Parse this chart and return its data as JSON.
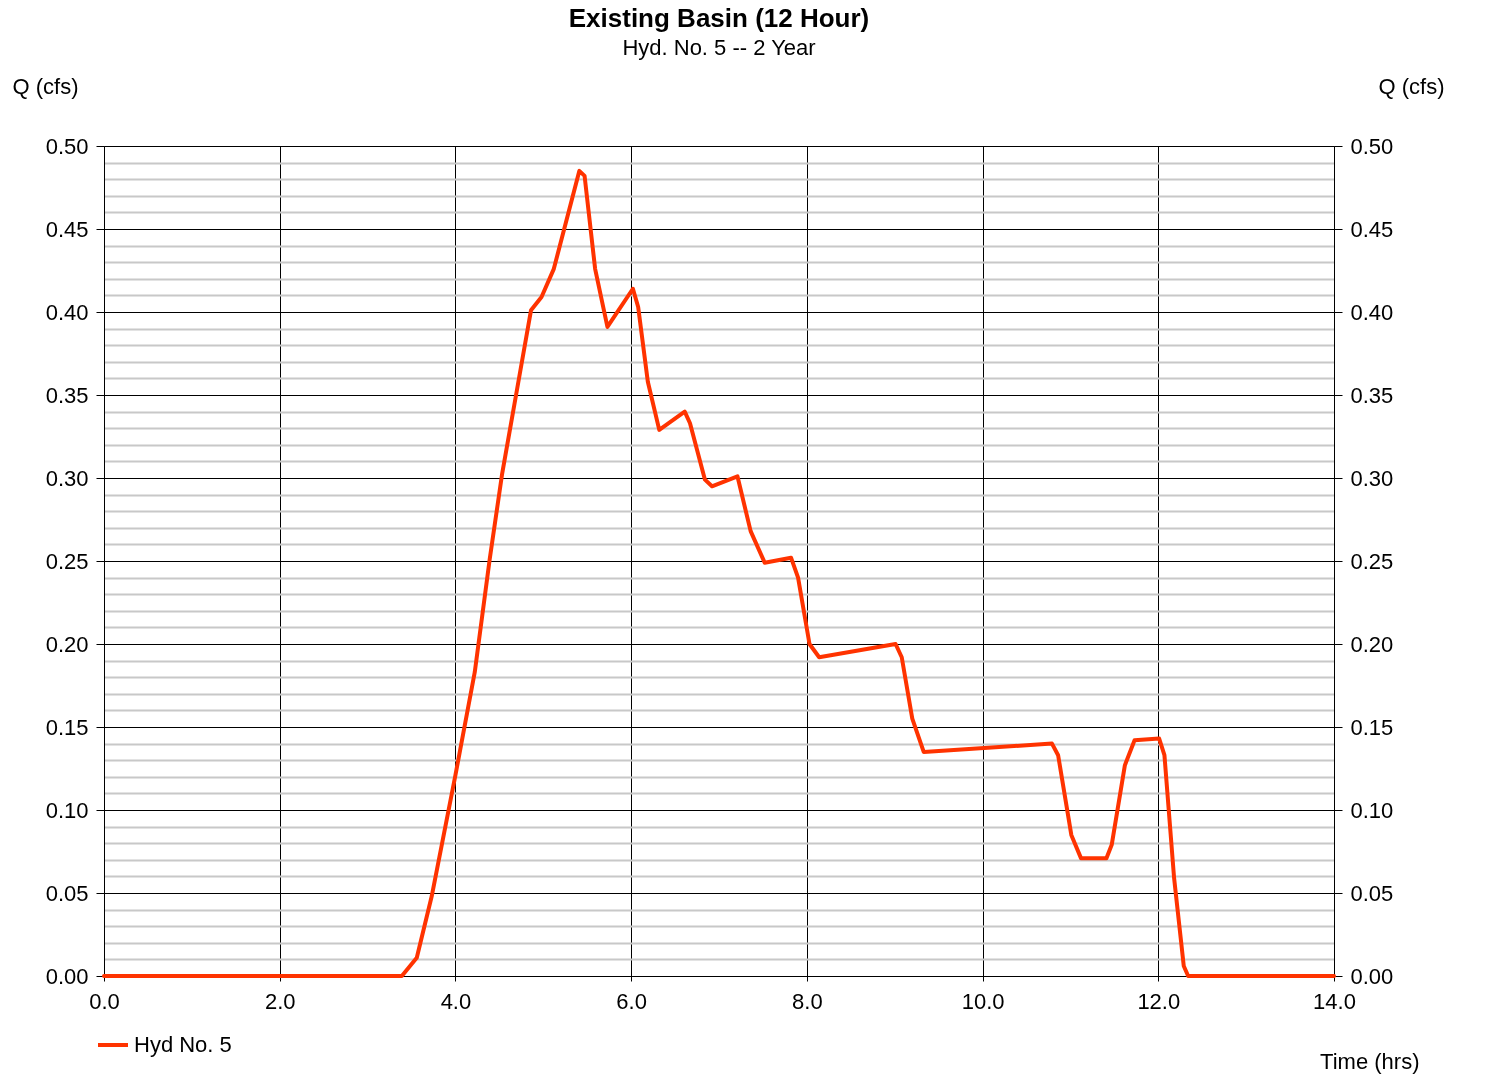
{
  "chart_data": {
    "type": "line",
    "title": "Existing Basin (12 Hour)",
    "subtitle": "Hyd. No. 5 -- 2 Year",
    "xlabel": "Time (hrs)",
    "ylabel": "Q (cfs)",
    "y2label": "Q (cfs)",
    "series": [
      {
        "name": "Hyd No. 5",
        "color": "#ff3300",
        "x": [
          0,
          3.39,
          3.56,
          3.73,
          4.0,
          4.22,
          4.39,
          4.53,
          4.69,
          4.86,
          4.98,
          5.12,
          5.41,
          5.47,
          5.59,
          5.73,
          6.02,
          6.08,
          6.19,
          6.32,
          6.61,
          6.67,
          6.84,
          6.92,
          7.21,
          7.36,
          7.52,
          7.82,
          7.9,
          8.03,
          8.14,
          9.01,
          9.08,
          9.2,
          9.33,
          10.79,
          10.86,
          11.01,
          11.12,
          11.41,
          11.47,
          11.62,
          11.73,
          12.01,
          12.07,
          12.18,
          12.29,
          12.34,
          14
        ],
        "values": [
          0,
          0,
          0.011,
          0.048,
          0.121,
          0.183,
          0.251,
          0.302,
          0.35,
          0.401,
          0.409,
          0.426,
          0.485,
          0.482,
          0.426,
          0.391,
          0.414,
          0.403,
          0.358,
          0.329,
          0.34,
          0.333,
          0.299,
          0.295,
          0.301,
          0.268,
          0.249,
          0.252,
          0.24,
          0.2,
          0.192,
          0.2,
          0.192,
          0.155,
          0.135,
          0.14,
          0.133,
          0.085,
          0.071,
          0.071,
          0.079,
          0.127,
          0.142,
          0.143,
          0.133,
          0.059,
          0.006,
          0,
          0
        ]
      }
    ],
    "xlim": [
      0,
      14
    ],
    "xticks": [
      {
        "value": 0,
        "label": "0.0"
      },
      {
        "value": 2,
        "label": "2.0"
      },
      {
        "value": 4,
        "label": "4.0"
      },
      {
        "value": 6,
        "label": "6.0"
      },
      {
        "value": 8,
        "label": "8.0"
      },
      {
        "value": 10,
        "label": "10.0"
      },
      {
        "value": 12,
        "label": "12.0"
      },
      {
        "value": 14,
        "label": "14.0"
      }
    ],
    "ylim": [
      0,
      0.5
    ],
    "yticks": [
      {
        "value": 0,
        "label": "0.00"
      },
      {
        "value": 0.01,
        "label": null
      },
      {
        "value": 0.02,
        "label": null
      },
      {
        "value": 0.03,
        "label": null
      },
      {
        "value": 0.04,
        "label": null
      },
      {
        "value": 0.05,
        "label": "0.05"
      },
      {
        "value": 0.06,
        "label": null
      },
      {
        "value": 0.07,
        "label": null
      },
      {
        "value": 0.08,
        "label": null
      },
      {
        "value": 0.09,
        "label": null
      },
      {
        "value": 0.1,
        "label": "0.10"
      },
      {
        "value": 0.11,
        "label": null
      },
      {
        "value": 0.12,
        "label": null
      },
      {
        "value": 0.13,
        "label": null
      },
      {
        "value": 0.14,
        "label": null
      },
      {
        "value": 0.15,
        "label": "0.15"
      },
      {
        "value": 0.16,
        "label": null
      },
      {
        "value": 0.17,
        "label": null
      },
      {
        "value": 0.18,
        "label": null
      },
      {
        "value": 0.19,
        "label": null
      },
      {
        "value": 0.2,
        "label": "0.20"
      },
      {
        "value": 0.21,
        "label": null
      },
      {
        "value": 0.22,
        "label": null
      },
      {
        "value": 0.23,
        "label": null
      },
      {
        "value": 0.24,
        "label": null
      },
      {
        "value": 0.25,
        "label": "0.25"
      },
      {
        "value": 0.26,
        "label": null
      },
      {
        "value": 0.27,
        "label": null
      },
      {
        "value": 0.28,
        "label": null
      },
      {
        "value": 0.29,
        "label": null
      },
      {
        "value": 0.3,
        "label": "0.30"
      },
      {
        "value": 0.31,
        "label": null
      },
      {
        "value": 0.32,
        "label": null
      },
      {
        "value": 0.33,
        "label": null
      },
      {
        "value": 0.34,
        "label": null
      },
      {
        "value": 0.35,
        "label": "0.35"
      },
      {
        "value": 0.36,
        "label": null
      },
      {
        "value": 0.37,
        "label": null
      },
      {
        "value": 0.38,
        "label": null
      },
      {
        "value": 0.39,
        "label": null
      },
      {
        "value": 0.4,
        "label": "0.40"
      },
      {
        "value": 0.41,
        "label": null
      },
      {
        "value": 0.42,
        "label": null
      },
      {
        "value": 0.43,
        "label": null
      },
      {
        "value": 0.44,
        "label": null
      },
      {
        "value": 0.45,
        "label": "0.45"
      },
      {
        "value": 0.46,
        "label": null
      },
      {
        "value": 0.47,
        "label": null
      },
      {
        "value": 0.48,
        "label": null
      },
      {
        "value": 0.49,
        "label": null
      },
      {
        "value": 0.5,
        "label": "0.50"
      }
    ],
    "y2lim": [
      0,
      0.5
    ],
    "y2ticks": [
      {
        "value": 0,
        "label": "0.00"
      },
      {
        "value": 0.05,
        "label": "0.05"
      },
      {
        "value": 0.1,
        "label": "0.10"
      },
      {
        "value": 0.15,
        "label": "0.15"
      },
      {
        "value": 0.2,
        "label": "0.20"
      },
      {
        "value": 0.25,
        "label": "0.25"
      },
      {
        "value": 0.3,
        "label": "0.30"
      },
      {
        "value": 0.35,
        "label": "0.35"
      },
      {
        "value": 0.4,
        "label": "0.40"
      },
      {
        "value": 0.45,
        "label": "0.45"
      },
      {
        "value": 0.5,
        "label": "0.50"
      }
    ],
    "grid": true,
    "legend": "bottom left",
    "marker": "none",
    "line_style": "solid"
  }
}
